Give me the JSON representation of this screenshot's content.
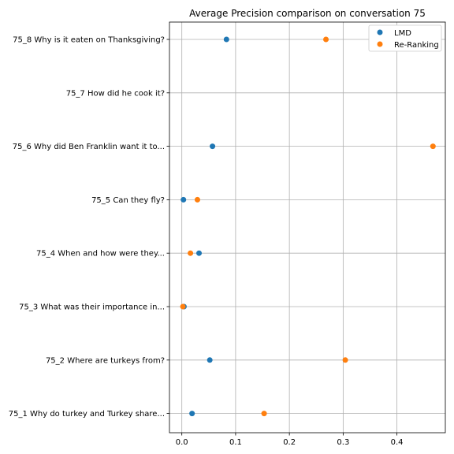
{
  "chart_data": {
    "type": "scatter",
    "title": "Average Precision comparison on conversation 75",
    "xlabel": "",
    "ylabel": "",
    "xlim": [
      -0.023,
      0.49
    ],
    "xticks": [
      "0.0",
      "0.1",
      "0.2",
      "0.3",
      "0.4"
    ],
    "xtick_values": [
      0.0,
      0.1,
      0.2,
      0.3,
      0.4
    ],
    "grid": true,
    "legend_position": "top-right",
    "categories": [
      "75_8 Why is it eaten on Thanksgiving?",
      "75_7 How did he cook it?",
      "75_6 Why did Ben Franklin want it to...",
      "75_5 Can they fly?",
      "75_4 When and how were they...",
      "75_3 What was their importance in...",
      "75_2 Where are turkeys from?",
      "75_1 Why do turkey and Turkey share..."
    ],
    "series": [
      {
        "name": "LMD",
        "color": "#1f77b4",
        "values": [
          0.083,
          null,
          0.057,
          0.003,
          0.032,
          0.004,
          0.052,
          0.019
        ]
      },
      {
        "name": "Re-Ranking",
        "color": "#ff7f0e",
        "values": [
          0.268,
          null,
          0.467,
          0.029,
          0.016,
          0.002,
          0.304,
          0.153
        ]
      }
    ]
  }
}
